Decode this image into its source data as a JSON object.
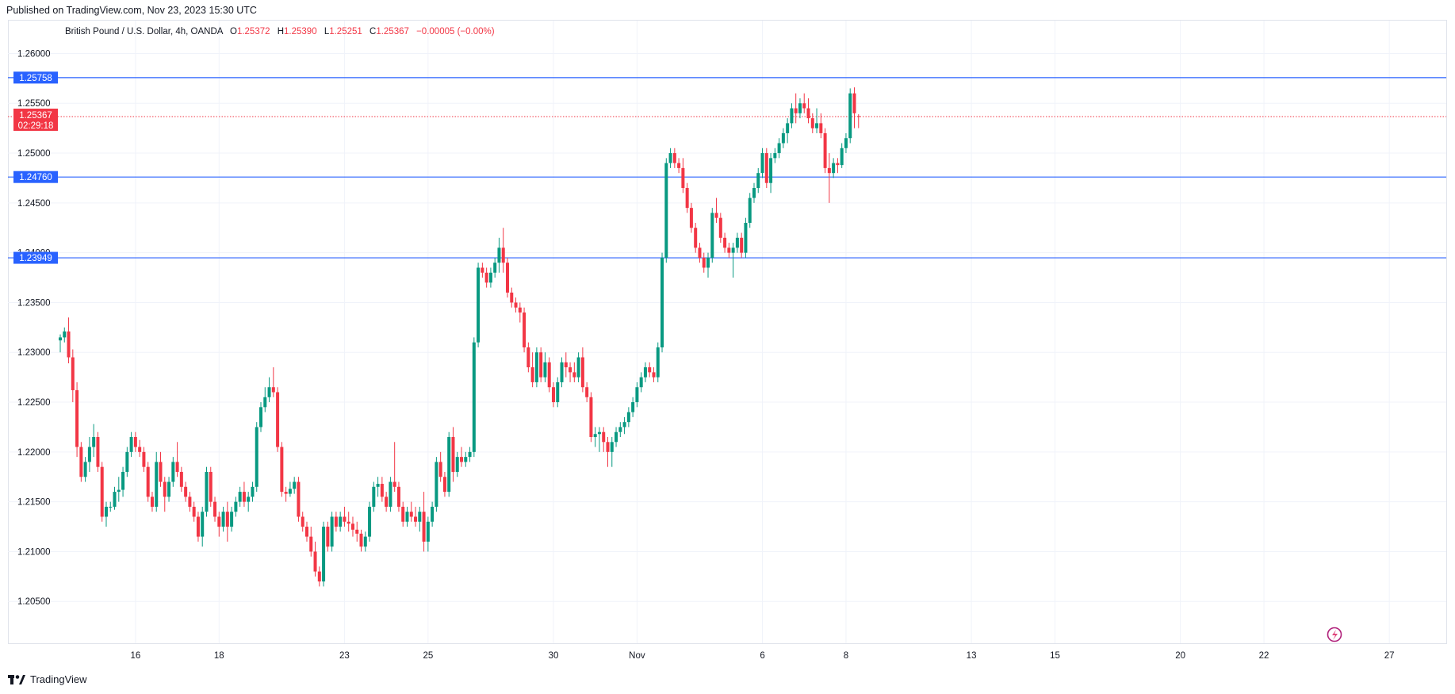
{
  "header": {
    "published": "Published on TradingView.com, Nov 23, 2023 15:30 UTC"
  },
  "legend": {
    "symbol": "British Pound / U.S. Dollar, 4h, OANDA",
    "o_key": "O",
    "o": "1.25372",
    "h_key": "H",
    "h": "1.25390",
    "l_key": "L",
    "l": "1.25251",
    "c_key": "C",
    "c": "1.25367",
    "change": "−0.00005 (−0.00%)"
  },
  "footer": {
    "brand": "TradingView"
  },
  "colors": {
    "up": "#089981",
    "down": "#f23645",
    "hline": "#2962ff",
    "grid": "#f0f3fa",
    "axis_text": "#131722"
  },
  "chart_data": {
    "type": "candlestick",
    "symbol": "GBPUSD",
    "timeframe": "4h",
    "ylim": [
      1.2008,
      1.2633
    ],
    "y_ticks": [
      "1.20500",
      "1.21000",
      "1.21500",
      "1.22000",
      "1.22500",
      "1.23000",
      "1.23500",
      "1.24000",
      "1.24500",
      "1.25000",
      "1.25500",
      "1.26000"
    ],
    "x_ticks": [
      "16",
      "18",
      "23",
      "25",
      "30",
      "Nov",
      "6",
      "8",
      "13",
      "15",
      "20",
      "22",
      "27"
    ],
    "x_tick_bar_index": [
      18,
      38,
      68,
      88,
      118,
      138,
      168,
      188,
      218,
      238,
      268,
      288,
      318
    ],
    "horizontal_lines": [
      {
        "value": 1.25758,
        "label": "1.25758"
      },
      {
        "value": 1.2476,
        "label": "1.24760"
      },
      {
        "value": 1.23949,
        "label": "1.23949"
      }
    ],
    "current_price": {
      "value": 1.25367,
      "label": "1.25367",
      "countdown": "02:29:18"
    },
    "grid": true,
    "candles": [
      [
        1.2312,
        1.2318,
        1.23,
        1.2315
      ],
      [
        1.2315,
        1.2325,
        1.231,
        1.2321
      ],
      [
        1.2321,
        1.2335,
        1.2289,
        1.2295
      ],
      [
        1.2295,
        1.2303,
        1.225,
        1.2262
      ],
      [
        1.2262,
        1.227,
        1.2195,
        1.2205
      ],
      [
        1.2205,
        1.221,
        1.217,
        1.2175
      ],
      [
        1.2175,
        1.2195,
        1.217,
        1.219
      ],
      [
        1.219,
        1.2215,
        1.218,
        1.2205
      ],
      [
        1.2205,
        1.2228,
        1.2195,
        1.2215
      ],
      [
        1.2215,
        1.222,
        1.218,
        1.2185
      ],
      [
        1.2185,
        1.219,
        1.213,
        1.2135
      ],
      [
        1.2135,
        1.215,
        1.2125,
        1.2145
      ],
      [
        1.2145,
        1.215,
        1.214,
        1.2145
      ],
      [
        1.2145,
        1.2165,
        1.2142,
        1.216
      ],
      [
        1.216,
        1.2175,
        1.215,
        1.2162
      ],
      [
        1.2162,
        1.2185,
        1.2155,
        1.218
      ],
      [
        1.218,
        1.2205,
        1.2175,
        1.22
      ],
      [
        1.22,
        1.222,
        1.2195,
        1.2215
      ],
      [
        1.2215,
        1.222,
        1.22,
        1.2205
      ],
      [
        1.2205,
        1.2212,
        1.2195,
        1.22
      ],
      [
        1.22,
        1.2205,
        1.218,
        1.2185
      ],
      [
        1.2185,
        1.219,
        1.215,
        1.2155
      ],
      [
        1.2155,
        1.216,
        1.214,
        1.2145
      ],
      [
        1.2145,
        1.22,
        1.214,
        1.219
      ],
      [
        1.219,
        1.22,
        1.2165,
        1.217
      ],
      [
        1.217,
        1.2175,
        1.214,
        1.2155
      ],
      [
        1.2155,
        1.2175,
        1.215,
        1.217
      ],
      [
        1.217,
        1.2195,
        1.2165,
        1.219
      ],
      [
        1.219,
        1.221,
        1.2175,
        1.218
      ],
      [
        1.218,
        1.2185,
        1.216,
        1.2165
      ],
      [
        1.2165,
        1.217,
        1.215,
        1.2155
      ],
      [
        1.2155,
        1.216,
        1.214,
        1.2145
      ],
      [
        1.2145,
        1.215,
        1.213,
        1.2135
      ],
      [
        1.2135,
        1.214,
        1.211,
        1.2115
      ],
      [
        1.2115,
        1.2145,
        1.2105,
        1.214
      ],
      [
        1.214,
        1.2185,
        1.2135,
        1.218
      ],
      [
        1.218,
        1.2185,
        1.2145,
        1.215
      ],
      [
        1.215,
        1.2155,
        1.213,
        1.2135
      ],
      [
        1.2135,
        1.214,
        1.2115,
        1.2125
      ],
      [
        1.2125,
        1.2145,
        1.212,
        1.214
      ],
      [
        1.214,
        1.215,
        1.211,
        1.2125
      ],
      [
        1.2125,
        1.2145,
        1.212,
        1.214
      ],
      [
        1.214,
        1.2155,
        1.2135,
        1.215
      ],
      [
        1.215,
        1.2165,
        1.2145,
        1.216
      ],
      [
        1.216,
        1.217,
        1.2145,
        1.215
      ],
      [
        1.215,
        1.216,
        1.214,
        1.2155
      ],
      [
        1.2155,
        1.217,
        1.215,
        1.2165
      ],
      [
        1.2165,
        1.223,
        1.216,
        1.2225
      ],
      [
        1.2225,
        1.225,
        1.222,
        1.2245
      ],
      [
        1.2245,
        1.2265,
        1.224,
        1.2255
      ],
      [
        1.2255,
        1.2275,
        1.225,
        1.2265
      ],
      [
        1.2265,
        1.2285,
        1.2255,
        1.226
      ],
      [
        1.226,
        1.2265,
        1.22,
        1.2205
      ],
      [
        1.2205,
        1.221,
        1.2155,
        1.216
      ],
      [
        1.216,
        1.2165,
        1.215,
        1.2158
      ],
      [
        1.2158,
        1.217,
        1.2155,
        1.2163
      ],
      [
        1.2163,
        1.2175,
        1.2158,
        1.217
      ],
      [
        1.217,
        1.2175,
        1.213,
        1.2135
      ],
      [
        1.2135,
        1.214,
        1.212,
        1.2125
      ],
      [
        1.2125,
        1.213,
        1.211,
        1.2115
      ],
      [
        1.2115,
        1.2125,
        1.2095,
        1.21
      ],
      [
        1.21,
        1.211,
        1.2075,
        1.208
      ],
      [
        1.208,
        1.2085,
        1.2065,
        1.207
      ],
      [
        1.207,
        1.213,
        1.2065,
        1.2125
      ],
      [
        1.2125,
        1.213,
        1.21,
        1.2105
      ],
      [
        1.2105,
        1.214,
        1.21,
        1.2135
      ],
      [
        1.2135,
        1.214,
        1.212,
        1.2125
      ],
      [
        1.2125,
        1.214,
        1.212,
        1.2135
      ],
      [
        1.2135,
        1.2145,
        1.2125,
        1.213
      ],
      [
        1.213,
        1.214,
        1.212,
        1.2128
      ],
      [
        1.2128,
        1.2135,
        1.2115,
        1.2122
      ],
      [
        1.2122,
        1.213,
        1.211,
        1.2118
      ],
      [
        1.2118,
        1.2122,
        1.21,
        1.2105
      ],
      [
        1.2105,
        1.212,
        1.21,
        1.2115
      ],
      [
        1.2115,
        1.215,
        1.211,
        1.2145
      ],
      [
        1.2145,
        1.217,
        1.214,
        1.2165
      ],
      [
        1.2165,
        1.2175,
        1.2155,
        1.2168
      ],
      [
        1.2168,
        1.2175,
        1.215,
        1.2155
      ],
      [
        1.2155,
        1.216,
        1.214,
        1.2145
      ],
      [
        1.2145,
        1.2175,
        1.214,
        1.217
      ],
      [
        1.217,
        1.221,
        1.216,
        1.2165
      ],
      [
        1.2165,
        1.217,
        1.214,
        1.2145
      ],
      [
        1.2145,
        1.215,
        1.2125,
        1.213
      ],
      [
        1.213,
        1.2145,
        1.2125,
        1.214
      ],
      [
        1.214,
        1.215,
        1.213,
        1.2135
      ],
      [
        1.2135,
        1.2145,
        1.2125,
        1.213
      ],
      [
        1.213,
        1.2145,
        1.212,
        1.214
      ],
      [
        1.214,
        1.216,
        1.21,
        1.211
      ],
      [
        1.211,
        1.2135,
        1.21,
        1.213
      ],
      [
        1.213,
        1.215,
        1.2125,
        1.2145
      ],
      [
        1.2145,
        1.2195,
        1.214,
        1.219
      ],
      [
        1.219,
        1.22,
        1.217,
        1.2175
      ],
      [
        1.2175,
        1.218,
        1.2155,
        1.216
      ],
      [
        1.216,
        1.222,
        1.2155,
        1.2215
      ],
      [
        1.2215,
        1.2225,
        1.217,
        1.218
      ],
      [
        1.218,
        1.22,
        1.2175,
        1.2195
      ],
      [
        1.2195,
        1.2205,
        1.2185,
        1.219
      ],
      [
        1.219,
        1.22,
        1.2185,
        1.2195
      ],
      [
        1.2195,
        1.2205,
        1.219,
        1.22
      ],
      [
        1.22,
        1.2315,
        1.2195,
        1.231
      ],
      [
        1.231,
        1.239,
        1.2305,
        1.2385
      ],
      [
        1.2385,
        1.239,
        1.2375,
        1.238
      ],
      [
        1.238,
        1.2385,
        1.2365,
        1.237
      ],
      [
        1.237,
        1.2385,
        1.2365,
        1.238
      ],
      [
        1.238,
        1.2395,
        1.2375,
        1.239
      ],
      [
        1.239,
        1.2415,
        1.238,
        1.2405
      ],
      [
        1.2405,
        1.2425,
        1.238,
        1.239
      ],
      [
        1.239,
        1.2395,
        1.2355,
        1.236
      ],
      [
        1.236,
        1.2365,
        1.2345,
        1.235
      ],
      [
        1.235,
        1.2355,
        1.234,
        1.2345
      ],
      [
        1.2345,
        1.235,
        1.233,
        1.234
      ],
      [
        1.234,
        1.2345,
        1.23,
        1.2305
      ],
      [
        1.2305,
        1.231,
        1.228,
        1.2285
      ],
      [
        1.2285,
        1.23,
        1.2265,
        1.227
      ],
      [
        1.227,
        1.2305,
        1.2265,
        1.23
      ],
      [
        1.23,
        1.2305,
        1.227,
        1.2275
      ],
      [
        1.2275,
        1.23,
        1.227,
        1.229
      ],
      [
        1.229,
        1.2295,
        1.226,
        1.2265
      ],
      [
        1.2265,
        1.227,
        1.2245,
        1.225
      ],
      [
        1.225,
        1.2275,
        1.2245,
        1.227
      ],
      [
        1.227,
        1.2295,
        1.2265,
        1.229
      ],
      [
        1.229,
        1.23,
        1.2275,
        1.2285
      ],
      [
        1.2285,
        1.229,
        1.227,
        1.228
      ],
      [
        1.228,
        1.229,
        1.227,
        1.2275
      ],
      [
        1.2275,
        1.23,
        1.227,
        1.2295
      ],
      [
        1.2295,
        1.2305,
        1.226,
        1.2265
      ],
      [
        1.2265,
        1.227,
        1.225,
        1.2255
      ],
      [
        1.2255,
        1.226,
        1.221,
        1.2215
      ],
      [
        1.2215,
        1.2225,
        1.2205,
        1.2218
      ],
      [
        1.2218,
        1.2225,
        1.22,
        1.222
      ],
      [
        1.222,
        1.2225,
        1.22,
        1.221
      ],
      [
        1.221,
        1.2215,
        1.2185,
        1.22
      ],
      [
        1.22,
        1.2215,
        1.2185,
        1.221
      ],
      [
        1.221,
        1.2225,
        1.2205,
        1.222
      ],
      [
        1.222,
        1.223,
        1.2215,
        1.2225
      ],
      [
        1.2225,
        1.2235,
        1.2218,
        1.223
      ],
      [
        1.223,
        1.2245,
        1.2225,
        1.224
      ],
      [
        1.224,
        1.2255,
        1.2235,
        1.225
      ],
      [
        1.225,
        1.227,
        1.2245,
        1.2265
      ],
      [
        1.2265,
        1.228,
        1.226,
        1.2275
      ],
      [
        1.2275,
        1.229,
        1.227,
        1.2285
      ],
      [
        1.2285,
        1.229,
        1.2275,
        1.228
      ],
      [
        1.228,
        1.2285,
        1.227,
        1.2275
      ],
      [
        1.2275,
        1.231,
        1.227,
        1.2305
      ],
      [
        1.2305,
        1.24,
        1.23,
        1.2395
      ],
      [
        1.2395,
        1.2495,
        1.239,
        1.249
      ],
      [
        1.249,
        1.2505,
        1.2485,
        1.25
      ],
      [
        1.25,
        1.2505,
        1.2485,
        1.249
      ],
      [
        1.249,
        1.2495,
        1.248,
        1.2485
      ],
      [
        1.2485,
        1.2495,
        1.246,
        1.2465
      ],
      [
        1.2465,
        1.247,
        1.244,
        1.2445
      ],
      [
        1.2445,
        1.245,
        1.242,
        1.2425
      ],
      [
        1.2425,
        1.243,
        1.24,
        1.2405
      ],
      [
        1.2405,
        1.241,
        1.239,
        1.2395
      ],
      [
        1.2395,
        1.24,
        1.238,
        1.2385
      ],
      [
        1.2385,
        1.24,
        1.2375,
        1.2395
      ],
      [
        1.2395,
        1.2445,
        1.239,
        1.244
      ],
      [
        1.244,
        1.2455,
        1.243,
        1.2435
      ],
      [
        1.2435,
        1.244,
        1.241,
        1.2415
      ],
      [
        1.2415,
        1.242,
        1.24,
        1.2405
      ],
      [
        1.2405,
        1.241,
        1.2395,
        1.24
      ],
      [
        1.24,
        1.241,
        1.2375,
        1.2405
      ],
      [
        1.2405,
        1.242,
        1.24,
        1.2415
      ],
      [
        1.2415,
        1.242,
        1.2395,
        1.24
      ],
      [
        1.24,
        1.2435,
        1.2395,
        1.243
      ],
      [
        1.243,
        1.246,
        1.2425,
        1.2455
      ],
      [
        1.2455,
        1.247,
        1.245,
        1.2465
      ],
      [
        1.2465,
        1.2485,
        1.246,
        1.248
      ],
      [
        1.248,
        1.2505,
        1.2475,
        1.25
      ],
      [
        1.25,
        1.2505,
        1.2465,
        1.247
      ],
      [
        1.247,
        1.25,
        1.246,
        1.2495
      ],
      [
        1.2495,
        1.2505,
        1.249,
        1.25
      ],
      [
        1.25,
        1.2515,
        1.2495,
        1.251
      ],
      [
        1.251,
        1.2525,
        1.2505,
        1.252
      ],
      [
        1.252,
        1.2535,
        1.251,
        1.253
      ],
      [
        1.253,
        1.255,
        1.2525,
        1.2545
      ],
      [
        1.2545,
        1.256,
        1.253,
        1.254
      ],
      [
        1.254,
        1.2555,
        1.2535,
        1.255
      ],
      [
        1.255,
        1.256,
        1.254,
        1.2545
      ],
      [
        1.2545,
        1.2555,
        1.253,
        1.2535
      ],
      [
        1.2535,
        1.254,
        1.252,
        1.2525
      ],
      [
        1.2525,
        1.2545,
        1.252,
        1.253
      ],
      [
        1.253,
        1.254,
        1.2515,
        1.252
      ],
      [
        1.252,
        1.2525,
        1.248,
        1.2485
      ],
      [
        1.2485,
        1.25,
        1.245,
        1.248
      ],
      [
        1.248,
        1.2495,
        1.2475,
        1.249
      ],
      [
        1.249,
        1.2495,
        1.248,
        1.2488
      ],
      [
        1.2488,
        1.251,
        1.2485,
        1.2505
      ],
      [
        1.2505,
        1.252,
        1.25,
        1.2515
      ],
      [
        1.2515,
        1.2565,
        1.251,
        1.256
      ],
      [
        1.256,
        1.2566,
        1.2525,
        1.254
      ],
      [
        1.25372,
        1.2539,
        1.25251,
        1.25367
      ]
    ]
  }
}
